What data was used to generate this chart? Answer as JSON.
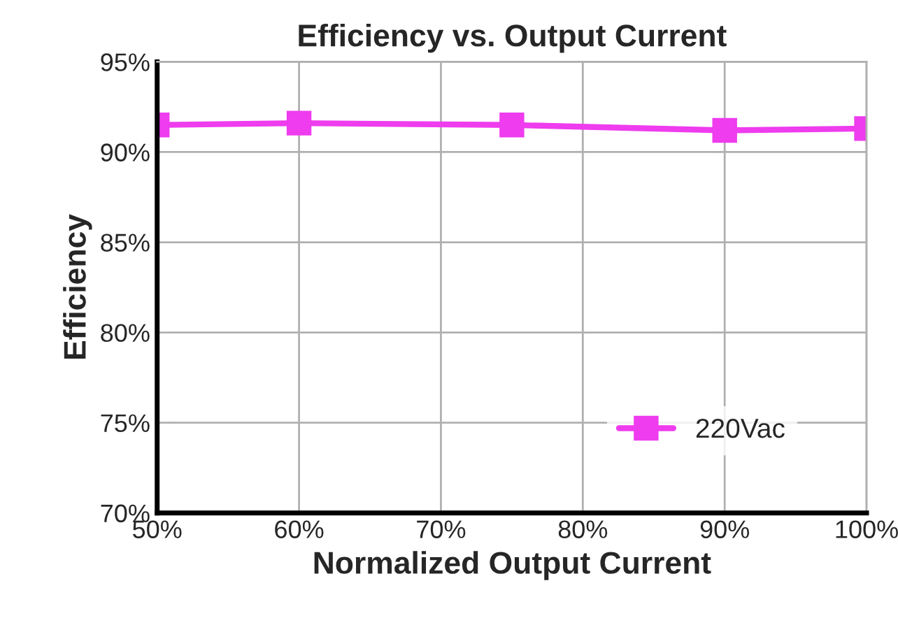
{
  "chart_data": {
    "type": "line",
    "title": "Efficiency vs. Output Current",
    "xlabel": "Normalized Output Current",
    "ylabel": "Efficiency",
    "x": [
      50,
      60,
      75,
      90,
      100
    ],
    "series": [
      {
        "name": "220Vac",
        "color": "#ee3cee",
        "values": [
          91.5,
          91.6,
          91.5,
          91.2,
          91.3
        ]
      }
    ],
    "xlim": [
      50,
      100
    ],
    "ylim": [
      70,
      95
    ],
    "xticks": [
      {
        "value": 50,
        "label": "50%"
      },
      {
        "value": 60,
        "label": "60%"
      },
      {
        "value": 70,
        "label": "70%"
      },
      {
        "value": 80,
        "label": "80%"
      },
      {
        "value": 90,
        "label": "90%"
      },
      {
        "value": 100,
        "label": "100%"
      }
    ],
    "yticks": [
      {
        "value": 70,
        "label": "70%"
      },
      {
        "value": 75,
        "label": "75%"
      },
      {
        "value": 80,
        "label": "80%"
      },
      {
        "value": 85,
        "label": "85%"
      },
      {
        "value": 90,
        "label": "90%"
      },
      {
        "value": 95,
        "label": "95%"
      }
    ],
    "grid": true,
    "legend": "bottom right",
    "marker": "square",
    "line_style": "solid"
  }
}
